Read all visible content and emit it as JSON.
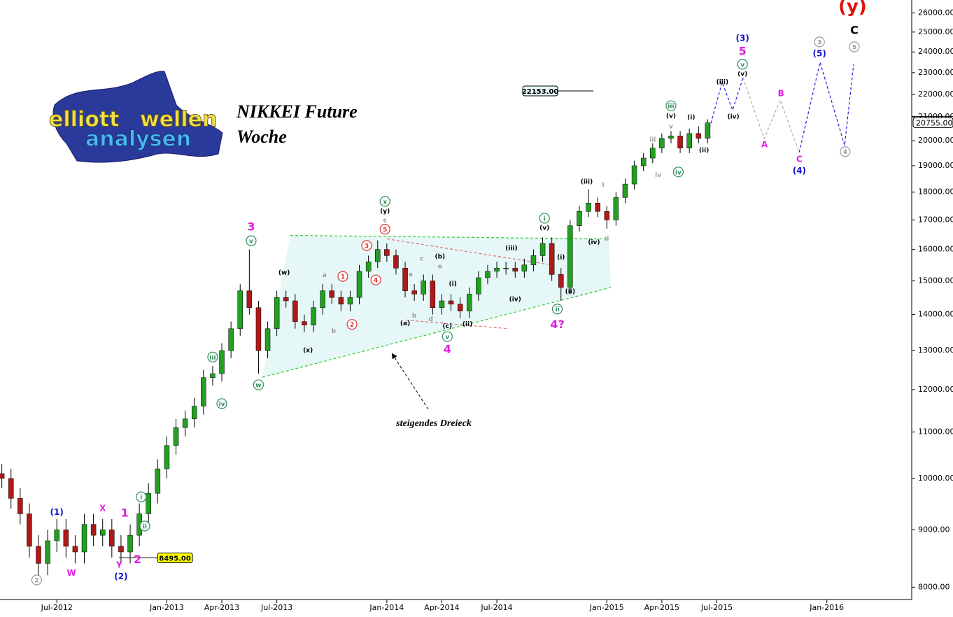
{
  "chart_data": {
    "type": "candlestick",
    "title": [
      "NIKKEI Future",
      "Woche"
    ],
    "logo_text": [
      "elliott",
      "wellen",
      "analysen"
    ],
    "note": "steigendes Dreieck",
    "log_scale": true,
    "grid": false,
    "up_color": "#22a022",
    "down_color": "#b01818",
    "xlim": [
      2.9,
      52.63
    ],
    "ylim": [
      7800,
      26700
    ],
    "xticks": [
      {
        "value": 6,
        "label": "Jul-2012"
      },
      {
        "value": 12,
        "label": "Jan-2013"
      },
      {
        "value": 15,
        "label": "Apr-2013"
      },
      {
        "value": 18,
        "label": "Jul-2013"
      },
      {
        "value": 24,
        "label": "Jan-2014"
      },
      {
        "value": 27,
        "label": "Apr-2014"
      },
      {
        "value": 30,
        "label": "Jul-2014"
      },
      {
        "value": 36,
        "label": "Jan-2015"
      },
      {
        "value": 39,
        "label": "Apr-2015"
      },
      {
        "value": 42,
        "label": "Jul-2015"
      },
      {
        "value": 48,
        "label": "Jan-2016"
      }
    ],
    "yticks": [
      {
        "value": 8000,
        "label": "8000.00"
      },
      {
        "value": 9000,
        "label": "9000.00"
      },
      {
        "value": 10000,
        "label": "10000.00"
      },
      {
        "value": 11000,
        "label": "11000.00"
      },
      {
        "value": 12000,
        "label": "12000.00"
      },
      {
        "value": 13000,
        "label": "13000.00"
      },
      {
        "value": 14000,
        "label": "14000.00"
      },
      {
        "value": 15000,
        "label": "15000.00"
      },
      {
        "value": 16000,
        "label": "16000.00"
      },
      {
        "value": 17000,
        "label": "17000.00"
      },
      {
        "value": 18000,
        "label": "18000.00"
      },
      {
        "value": 19000,
        "label": "19000.00"
      },
      {
        "value": 20000,
        "label": "20000.00"
      },
      {
        "value": 21000,
        "label": "21000.00"
      },
      {
        "value": 22000,
        "label": "22000.00"
      },
      {
        "value": 23000,
        "label": "23000.00"
      },
      {
        "value": 24000,
        "label": "24000.00"
      },
      {
        "value": 25000,
        "label": "25000.00"
      },
      {
        "value": 26000,
        "label": "26000.00"
      }
    ],
    "x": [
      3.0,
      3.5,
      4.0,
      4.5,
      5.0,
      5.5,
      6.0,
      6.5,
      7.0,
      7.5,
      8.0,
      8.5,
      9.0,
      9.5,
      10.0,
      10.5,
      11.0,
      11.5,
      12.0,
      12.5,
      13.0,
      13.5,
      14.0,
      14.5,
      15.0,
      15.5,
      16.0,
      16.5,
      17.0,
      17.5,
      18.0,
      18.5,
      19.0,
      19.5,
      20.0,
      20.5,
      21.0,
      21.5,
      22.0,
      22.5,
      23.0,
      23.5,
      24.0,
      24.5,
      25.0,
      25.5,
      26.0,
      26.5,
      27.0,
      27.5,
      28.0,
      28.5,
      29.0,
      29.5,
      30.0,
      30.5,
      31.0,
      31.5,
      32.0,
      32.5,
      33.0,
      33.5,
      34.0,
      34.5,
      35.0,
      35.5,
      36.0,
      36.5,
      37.0,
      37.5,
      38.0,
      38.5,
      39.0,
      39.5,
      40.0,
      40.5,
      41.0,
      41.5
    ],
    "open": [
      10100,
      10000,
      9600,
      9300,
      8700,
      8400,
      8800,
      9000,
      8700,
      8600,
      9100,
      8900,
      9000,
      8700,
      8600,
      8900,
      9300,
      9700,
      10200,
      10700,
      11100,
      11300,
      11600,
      12300,
      12400,
      13000,
      13600,
      14700,
      14200,
      13000,
      13600,
      14500,
      14400,
      13800,
      13700,
      14200,
      14700,
      14500,
      14300,
      14500,
      15300,
      15600,
      16000,
      15800,
      15400,
      14700,
      14600,
      15000,
      14200,
      14400,
      14300,
      14100,
      14600,
      15100,
      15300,
      15400,
      15400,
      15300,
      15500,
      15800,
      16200,
      15200,
      14800,
      16800,
      17300,
      17600,
      17300,
      17000,
      17800,
      18300,
      19000,
      19300,
      19700,
      20100,
      20200,
      19700,
      20300,
      20100
    ],
    "high": [
      10300,
      10200,
      9800,
      9500,
      8900,
      9000,
      9200,
      9200,
      8900,
      9300,
      9300,
      9200,
      9200,
      8900,
      9100,
      9500,
      9900,
      10400,
      10900,
      11300,
      11500,
      11800,
      12500,
      12600,
      13200,
      13800,
      14900,
      16000,
      14400,
      13800,
      14700,
      14700,
      14600,
      14000,
      14400,
      14900,
      14900,
      14700,
      14700,
      15500,
      15800,
      16300,
      16200,
      16000,
      15600,
      14900,
      15200,
      15200,
      14600,
      14600,
      14500,
      14800,
      15300,
      15500,
      15600,
      15600,
      15600,
      15700,
      16000,
      16400,
      16400,
      15400,
      17000,
      17500,
      18100,
      17800,
      17500,
      18000,
      18500,
      19200,
      19500,
      19900,
      20300,
      20400,
      20400,
      20500,
      20600,
      20900
    ],
    "low": [
      9800,
      9400,
      9100,
      8500,
      8200,
      8200,
      8600,
      8500,
      8400,
      8400,
      8700,
      8700,
      8500,
      8400,
      8400,
      8700,
      9100,
      9500,
      10000,
      10500,
      10900,
      11100,
      11400,
      12100,
      12200,
      12800,
      13400,
      14000,
      12400,
      12800,
      13400,
      14200,
      13600,
      13500,
      13500,
      14000,
      14300,
      14100,
      14100,
      14300,
      15100,
      15400,
      15600,
      15200,
      14500,
      14400,
      14400,
      14000,
      14000,
      14100,
      13900,
      13900,
      14400,
      14900,
      15100,
      15200,
      15100,
      15100,
      15300,
      15600,
      15000,
      14400,
      14600,
      16600,
      17100,
      17100,
      16700,
      16800,
      17600,
      18100,
      18800,
      19100,
      19500,
      19900,
      19500,
      19500,
      19900,
      19900
    ],
    "close": [
      10000,
      9600,
      9300,
      8700,
      8400,
      8800,
      9000,
      8700,
      8600,
      9100,
      8900,
      9000,
      8700,
      8600,
      8900,
      9300,
      9700,
      10200,
      10700,
      11100,
      11300,
      11600,
      12300,
      12400,
      13000,
      13600,
      14700,
      14200,
      13000,
      13600,
      14500,
      14400,
      13800,
      13700,
      14200,
      14700,
      14500,
      14300,
      14500,
      15300,
      15600,
      16000,
      15800,
      15400,
      14700,
      14600,
      15000,
      14200,
      14400,
      14300,
      14100,
      14600,
      15100,
      15300,
      15400,
      15400,
      15300,
      15500,
      15800,
      16200,
      15200,
      14800,
      16800,
      17300,
      17600,
      17300,
      17000,
      17800,
      18300,
      19000,
      19300,
      19700,
      20100,
      20200,
      19700,
      20300,
      20100,
      20750
    ],
    "last_price": {
      "value": 20755,
      "label": "20755.00"
    },
    "price_tags": [
      {
        "value": 22153,
        "label": "22153.00",
        "x": [
          33.32,
          35.27
        ],
        "box_side": "left"
      },
      {
        "value": 8495,
        "label": "8495.00",
        "x": [
          9.39,
          11.49
        ],
        "box_side": "right"
      }
    ],
    "triangle": {
      "color": "#e6f7f7",
      "x": [
        17.21,
        18.74,
        36.11,
        36.22
      ],
      "y": [
        12310,
        16470,
        16350,
        14800
      ]
    },
    "lines": [
      {
        "color": "#33cc33",
        "x": [
          18.74,
          36.11
        ],
        "y": [
          16470,
          16350
        ]
      },
      {
        "color": "#33cc33",
        "x": [
          17.21,
          36.22
        ],
        "y": [
          12310,
          14800
        ]
      },
      {
        "color": "#e07070",
        "x": [
          24.01,
          32.79
        ],
        "y": [
          16350,
          15520
        ]
      },
      {
        "color": "#e07070",
        "x": [
          25.04,
          30.65
        ],
        "y": [
          13840,
          13600
        ]
      },
      {
        "color": "#2020e0",
        "x": [
          41.53,
          42.29,
          42.86,
          43.43
        ],
        "y": [
          20330,
          22550,
          21300,
          22770
        ]
      },
      {
        "color": "#aaaaaa",
        "x": [
          43.43,
          44.58,
          45.46,
          46.49
        ],
        "y": [
          22770,
          20090,
          21740,
          19530
        ]
      },
      {
        "color": "#2020e0",
        "x": [
          46.49,
          47.63,
          48.97,
          49.46
        ],
        "y": [
          19530,
          23500,
          19810,
          23400
        ]
      }
    ],
    "annotations": [
      {
        "text": "(y)",
        "x": 49.4,
        "y": 26320,
        "color": "#e01010",
        "size": "xl"
      },
      {
        "text": "C",
        "x": 49.5,
        "y": 25070,
        "color": "#000000",
        "size": "l"
      },
      {
        "text": "3",
        "x": 47.6,
        "y": 24500,
        "color": "#999999",
        "circle": true
      },
      {
        "text": "5",
        "x": 49.5,
        "y": 24250,
        "color": "#999999",
        "circle": true
      },
      {
        "text": "(5)",
        "x": 47.6,
        "y": 23900,
        "color": "#1010cc",
        "size": "m"
      },
      {
        "text": "4",
        "x": 49.0,
        "y": 19560,
        "color": "#999999",
        "circle": true
      },
      {
        "text": "(4)",
        "x": 46.5,
        "y": 18800,
        "color": "#1010cc",
        "size": "m"
      },
      {
        "text": "C",
        "x": 46.5,
        "y": 19250,
        "color": "#e020e0",
        "size": "m"
      },
      {
        "text": "B",
        "x": 45.5,
        "y": 22030,
        "color": "#e020e0",
        "size": "m"
      },
      {
        "text": "A",
        "x": 44.6,
        "y": 19840,
        "color": "#e020e0",
        "size": "m"
      },
      {
        "text": "(3)",
        "x": 43.4,
        "y": 24680,
        "color": "#1010cc",
        "size": "m"
      },
      {
        "text": "5",
        "x": 43.4,
        "y": 24000,
        "color": "#e020e0",
        "size": "l"
      },
      {
        "text": "v",
        "x": 43.4,
        "y": 23400,
        "color": "#2e8b57",
        "circle": true
      },
      {
        "text": "(v)",
        "x": 43.4,
        "y": 22930,
        "color": "#000000"
      },
      {
        "text": "(iii)",
        "x": 42.3,
        "y": 22550,
        "color": "#000000"
      },
      {
        "text": "(iv)",
        "x": 42.9,
        "y": 21000,
        "color": "#000000"
      },
      {
        "text": "(i)",
        "x": 40.6,
        "y": 20970,
        "color": "#000000"
      },
      {
        "text": "(ii)",
        "x": 41.3,
        "y": 19610,
        "color": "#000000"
      },
      {
        "text": "iii",
        "x": 39.5,
        "y": 21490,
        "color": "#2e8b57",
        "circle": true
      },
      {
        "text": "(v)",
        "x": 39.5,
        "y": 21040,
        "color": "#000000"
      },
      {
        "text": "v",
        "x": 39.5,
        "y": 20590,
        "color": "#999999"
      },
      {
        "text": "iii",
        "x": 38.5,
        "y": 20040,
        "color": "#999999"
      },
      {
        "text": "iv",
        "x": 38.8,
        "y": 18630,
        "color": "#999999"
      },
      {
        "text": "iv",
        "x": 39.9,
        "y": 18760,
        "color": "#2e8b57",
        "circle": true
      },
      {
        "text": "i",
        "x": 35.8,
        "y": 18260,
        "color": "#999999"
      },
      {
        "text": "(iii)",
        "x": 34.9,
        "y": 18380,
        "color": "#000000"
      },
      {
        "text": "(iv)",
        "x": 35.3,
        "y": 16230,
        "color": "#000000"
      },
      {
        "text": "ii",
        "x": 36.0,
        "y": 16350,
        "color": "#999999"
      },
      {
        "text": "i",
        "x": 32.6,
        "y": 17060,
        "color": "#2e8b57",
        "circle": true
      },
      {
        "text": "(v)",
        "x": 32.6,
        "y": 16720,
        "color": "#000000"
      },
      {
        "text": "(iii)",
        "x": 30.8,
        "y": 16040,
        "color": "#000000"
      },
      {
        "text": "(iv)",
        "x": 31.0,
        "y": 14440,
        "color": "#000000"
      },
      {
        "text": "(i)",
        "x": 33.5,
        "y": 15740,
        "color": "#000000"
      },
      {
        "text": "(ii)",
        "x": 34.0,
        "y": 14670,
        "color": "#000000"
      },
      {
        "text": "ii",
        "x": 33.3,
        "y": 14160,
        "color": "#2e8b57",
        "circle": true
      },
      {
        "text": "4?",
        "x": 33.3,
        "y": 13700,
        "color": "#e020e0",
        "size": "l"
      },
      {
        "text": "(b)",
        "x": 26.9,
        "y": 15760,
        "color": "#000000"
      },
      {
        "text": "c",
        "x": 25.9,
        "y": 15700,
        "color": "#999999"
      },
      {
        "text": "e",
        "x": 26.9,
        "y": 15450,
        "color": "#999999"
      },
      {
        "text": "a",
        "x": 25.3,
        "y": 15200,
        "color": "#999999"
      },
      {
        "text": "(i)",
        "x": 27.6,
        "y": 14910,
        "color": "#000000"
      },
      {
        "text": "(a)",
        "x": 25.0,
        "y": 13740,
        "color": "#000000"
      },
      {
        "text": "b",
        "x": 25.5,
        "y": 13960,
        "color": "#999999"
      },
      {
        "text": "d",
        "x": 26.4,
        "y": 13860,
        "color": "#999999"
      },
      {
        "text": "(c)",
        "x": 27.3,
        "y": 13660,
        "color": "#000000"
      },
      {
        "text": "(ii)",
        "x": 28.4,
        "y": 13720,
        "color": "#000000"
      },
      {
        "text": "v",
        "x": 27.3,
        "y": 13380,
        "color": "#2e8b57",
        "circle": true
      },
      {
        "text": "4",
        "x": 27.3,
        "y": 13020,
        "color": "#e020e0",
        "size": "l"
      },
      {
        "text": "x",
        "x": 23.9,
        "y": 17660,
        "color": "#2e8b57",
        "circle": true
      },
      {
        "text": "(y)",
        "x": 23.9,
        "y": 17310,
        "color": "#000000"
      },
      {
        "text": "c",
        "x": 23.9,
        "y": 16990,
        "color": "#999999"
      },
      {
        "text": "5",
        "x": 23.9,
        "y": 16680,
        "color": "#e03030",
        "circle": true
      },
      {
        "text": "3",
        "x": 22.9,
        "y": 16130,
        "color": "#e03030",
        "circle": true
      },
      {
        "text": "4",
        "x": 23.4,
        "y": 15030,
        "color": "#e03030",
        "circle": true
      },
      {
        "text": "1",
        "x": 21.6,
        "y": 15140,
        "color": "#e03030",
        "circle": true
      },
      {
        "text": "2",
        "x": 22.1,
        "y": 13720,
        "color": "#e03030",
        "circle": true
      },
      {
        "text": "a",
        "x": 20.6,
        "y": 15180,
        "color": "#999999"
      },
      {
        "text": "b",
        "x": 21.1,
        "y": 13530,
        "color": "#999999"
      },
      {
        "text": "(w)",
        "x": 18.4,
        "y": 15250,
        "color": "#000000"
      },
      {
        "text": "(x)",
        "x": 19.7,
        "y": 13000,
        "color": "#000000"
      },
      {
        "text": "3",
        "x": 16.6,
        "y": 16740,
        "color": "#e020e0",
        "size": "l"
      },
      {
        "text": "v",
        "x": 16.6,
        "y": 16290,
        "color": "#2e8b57",
        "circle": true
      },
      {
        "text": "w",
        "x": 17.0,
        "y": 12120,
        "color": "#2e8b57",
        "circle": true
      },
      {
        "text": "iii",
        "x": 14.5,
        "y": 12830,
        "color": "#2e8b57",
        "circle": true
      },
      {
        "text": "iv",
        "x": 15.0,
        "y": 11660,
        "color": "#2e8b57",
        "circle": true
      },
      {
        "text": "i",
        "x": 10.6,
        "y": 9630,
        "color": "#2e8b57",
        "circle": true
      },
      {
        "text": "ii",
        "x": 10.8,
        "y": 9070,
        "color": "#2e8b57",
        "circle": true
      },
      {
        "text": "1",
        "x": 9.7,
        "y": 9310,
        "color": "#e020e0",
        "size": "l"
      },
      {
        "text": "X",
        "x": 8.5,
        "y": 9400,
        "color": "#e020e0",
        "size": "m"
      },
      {
        "text": "(1)",
        "x": 6.0,
        "y": 9330,
        "color": "#1010cc",
        "size": "m"
      },
      {
        "text": "W",
        "x": 6.8,
        "y": 8230,
        "color": "#e020e0",
        "size": "m"
      },
      {
        "text": "Y",
        "x": 9.4,
        "y": 8370,
        "color": "#e020e0",
        "size": "m"
      },
      {
        "text": "2",
        "x": 10.4,
        "y": 8460,
        "color": "#e020e0",
        "size": "l"
      },
      {
        "text": "(2)",
        "x": 9.5,
        "y": 8170,
        "color": "#1010cc",
        "size": "m"
      },
      {
        "text": "2",
        "x": 4.9,
        "y": 8120,
        "color": "#999999",
        "circle": true
      }
    ]
  }
}
